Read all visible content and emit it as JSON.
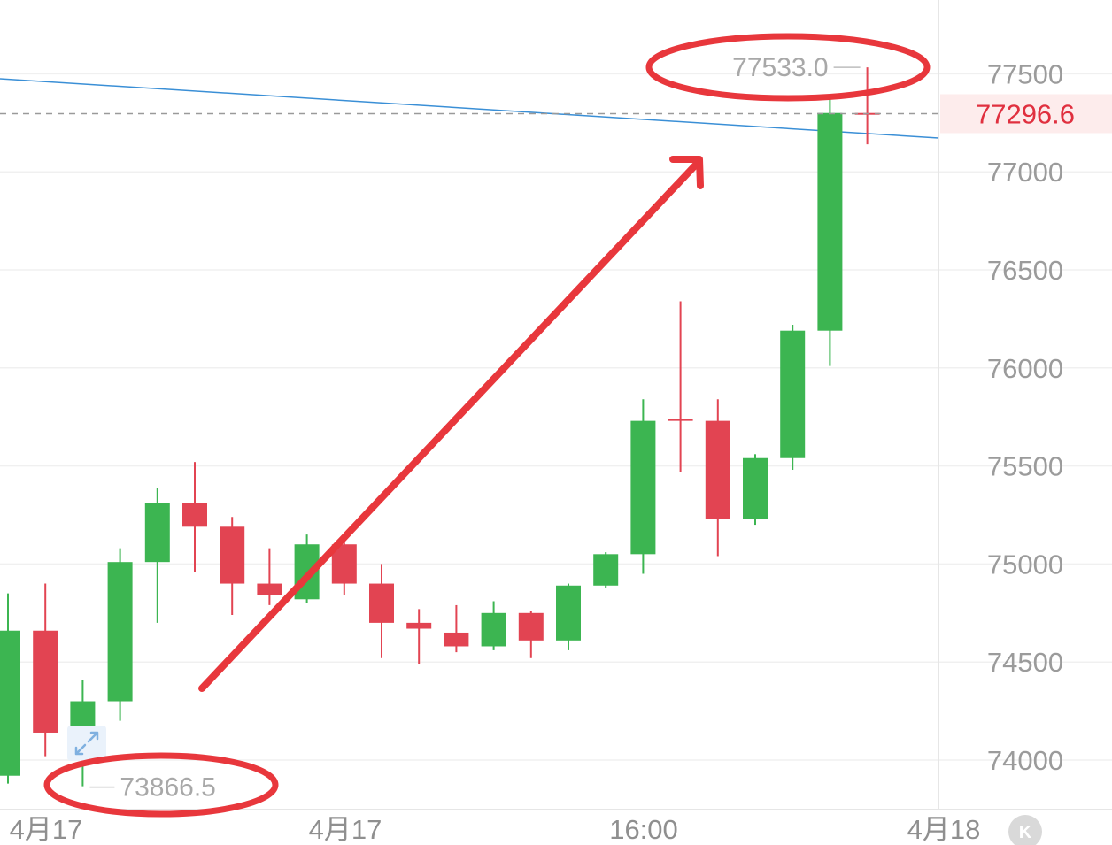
{
  "chart_data": {
    "type": "candlestick",
    "y_axis_ticks": [
      "77500",
      "77000",
      "76500",
      "76000",
      "75500",
      "75000",
      "74500",
      "74000"
    ],
    "y_axis_values": [
      77500,
      77000,
      76500,
      76000,
      75500,
      75000,
      74500,
      74000
    ],
    "ylim": [
      73600,
      77850
    ],
    "x_axis_labels": [
      "4月17",
      "4月17",
      "16:00",
      "4月18"
    ],
    "last_price": "77296.6",
    "last_price_value": 77296.6,
    "high_label": "77533.0",
    "low_label": "73866.5",
    "candles": [
      {
        "open": 73920,
        "high": 74850,
        "low": 73880,
        "close": 74660
      },
      {
        "open": 74660,
        "high": 74900,
        "low": 74020,
        "close": 74140
      },
      {
        "open": 74140,
        "high": 74410,
        "low": 73866.5,
        "close": 74300
      },
      {
        "open": 74300,
        "high": 75080,
        "low": 74200,
        "close": 75010
      },
      {
        "open": 75010,
        "high": 75390,
        "low": 74700,
        "close": 75310
      },
      {
        "open": 75310,
        "high": 75520,
        "low": 74960,
        "close": 75190
      },
      {
        "open": 75190,
        "high": 75240,
        "low": 74740,
        "close": 74900
      },
      {
        "open": 74900,
        "high": 75080,
        "low": 74790,
        "close": 74840
      },
      {
        "open": 74820,
        "high": 75150,
        "low": 74800,
        "close": 75100
      },
      {
        "open": 75100,
        "high": 75110,
        "low": 74840,
        "close": 74900
      },
      {
        "open": 74900,
        "high": 75000,
        "low": 74520,
        "close": 74700
      },
      {
        "open": 74700,
        "high": 74770,
        "low": 74490,
        "close": 74670
      },
      {
        "open": 74650,
        "high": 74790,
        "low": 74550,
        "close": 74580
      },
      {
        "open": 74580,
        "high": 74810,
        "low": 74560,
        "close": 74750
      },
      {
        "open": 74750,
        "high": 74760,
        "low": 74520,
        "close": 74610
      },
      {
        "open": 74610,
        "high": 74900,
        "low": 74560,
        "close": 74890
      },
      {
        "open": 74890,
        "high": 75060,
        "low": 74880,
        "close": 75050
      },
      {
        "open": 75050,
        "high": 75840,
        "low": 74950,
        "close": 75730
      },
      {
        "open": 75740,
        "high": 76340,
        "low": 75470,
        "close": 75730
      },
      {
        "open": 75730,
        "high": 75840,
        "low": 75040,
        "close": 75230
      },
      {
        "open": 75230,
        "high": 75560,
        "low": 75200,
        "close": 75540
      },
      {
        "open": 75540,
        "high": 76220,
        "low": 75480,
        "close": 76190
      },
      {
        "open": 76190,
        "high": 77370,
        "low": 76010,
        "close": 77300
      },
      {
        "open": 77300,
        "high": 77533.0,
        "low": 77140,
        "close": 77296.6
      }
    ],
    "grid": true,
    "up_color": "#3cb551",
    "down_color": "#e24452",
    "trendline_color": "#3a8fd6",
    "annotation_color": "#e8373c"
  },
  "kline_button": "K"
}
